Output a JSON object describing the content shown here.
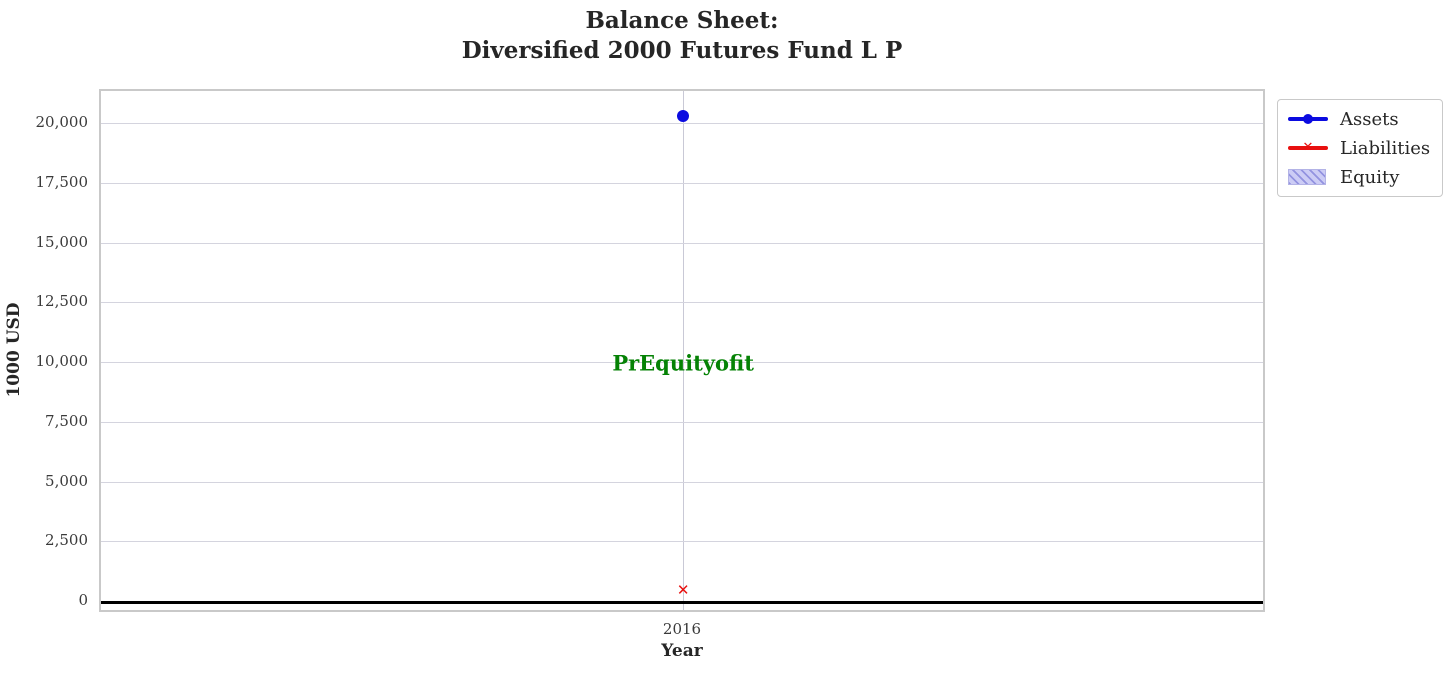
{
  "chart_data": {
    "type": "scatter",
    "title_line1": "Balance Sheet:",
    "title_line2": "Diversified 2000 Futures Fund L P",
    "xlabel": "Year",
    "ylabel": "1000 USD",
    "categories": [
      "2016"
    ],
    "xticklabels": [
      "2016"
    ],
    "yticks": [
      0,
      2500,
      5000,
      7500,
      10000,
      12500,
      15000,
      17500,
      20000
    ],
    "yticklabels": [
      "0",
      "2,500",
      "5,000",
      "7,500",
      "10,000",
      "12,500",
      "15,000",
      "17,500",
      "20,000"
    ],
    "ylim": [
      -500,
      21380
    ],
    "grid": true,
    "legend_position": "outside-top-right",
    "series": [
      {
        "name": "Assets",
        "values": [
          20335
        ],
        "color": "#0b0be0",
        "marker": "circle"
      },
      {
        "name": "Liabilities",
        "values": [
          460
        ],
        "color": "#e8100f",
        "marker": "x"
      },
      {
        "name": "Equity",
        "values": [],
        "color": "#ccccf5",
        "hatch": "///",
        "swatch": "hatched-patch"
      }
    ],
    "zero_line": {
      "y": 0,
      "color": "#000000"
    },
    "annotation": {
      "text": "PrEquityofit",
      "x": "2016",
      "y": 10000,
      "color": "#058205"
    }
  },
  "legend": {
    "items": [
      {
        "label": "Assets"
      },
      {
        "label": "Liabilities"
      },
      {
        "label": "Equity"
      }
    ]
  }
}
